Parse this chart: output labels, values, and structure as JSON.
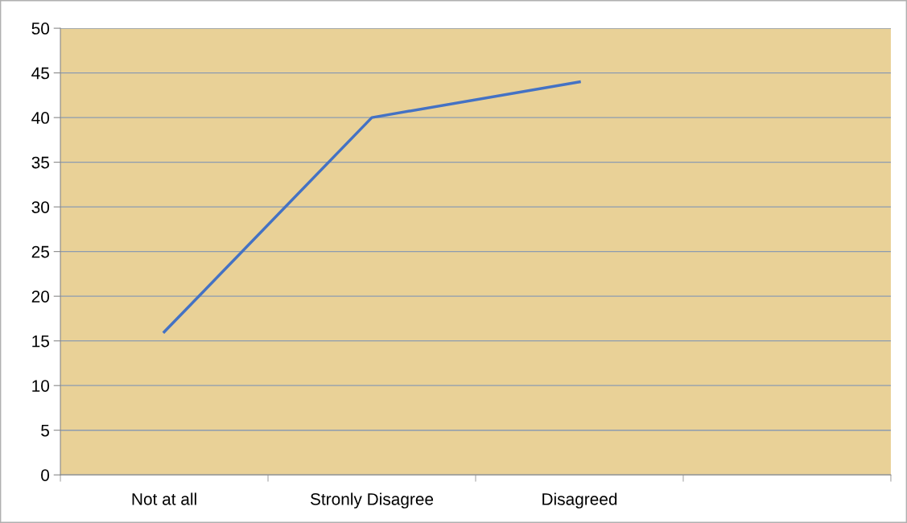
{
  "chart_data": {
    "type": "line",
    "categories": [
      "Not at all",
      "Stronly Disagree",
      "Disagreed",
      null
    ],
    "series": [
      {
        "color": "#4472c4",
        "values": [
          16,
          40,
          44,
          null
        ]
      }
    ],
    "ylim": [
      0,
      50
    ],
    "yticks": [
      0,
      5,
      10,
      15,
      20,
      25,
      30,
      35,
      40,
      45,
      50
    ],
    "grid": "y",
    "legend": false,
    "marker": "none",
    "line_style": "solid"
  }
}
